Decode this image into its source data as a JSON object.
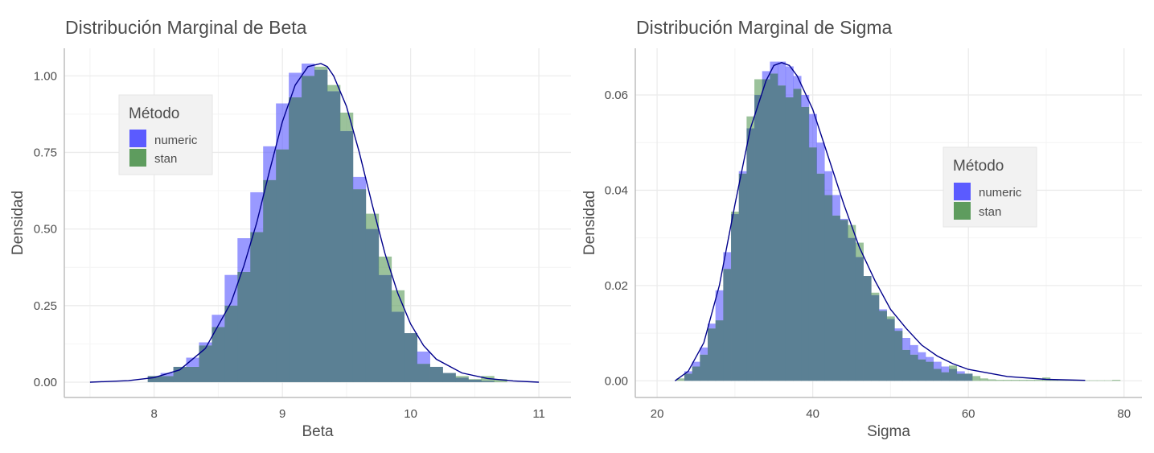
{
  "colors": {
    "numeric": "#5b5bff",
    "stan": "#5e9c5e",
    "overlap": "#5b8094",
    "curve": "#00008b",
    "title": "#4d4d4d",
    "axis_text": "#4d4d4d",
    "grid": "#ebebeb",
    "axis_line": "#bdbdbd",
    "legend_bg": "#f2f2f2"
  },
  "chart_data": [
    {
      "type": "histogram-density",
      "title": "Distribución Marginal de Beta",
      "xlabel": "Beta",
      "ylabel": "Densidad",
      "xlim": [
        7.3,
        11.25
      ],
      "ylim": [
        -0.05,
        1.09
      ],
      "xticks": [
        {
          "value": 8,
          "label": "8"
        },
        {
          "value": 9,
          "label": "9"
        },
        {
          "value": 10,
          "label": "10"
        },
        {
          "value": 11,
          "label": "11"
        }
      ],
      "yticks": [
        {
          "value": 0,
          "label": "0.00"
        },
        {
          "value": 0.25,
          "label": "0.25"
        },
        {
          "value": 0.5,
          "label": "0.50"
        },
        {
          "value": 0.75,
          "label": "0.75"
        },
        {
          "value": 1,
          "label": "1.00"
        }
      ],
      "grid": true,
      "legend": {
        "title": "Método",
        "position": "top-left",
        "items": [
          "numeric",
          "stan"
        ]
      },
      "curve": {
        "x": [
          7.5,
          7.8,
          8.0,
          8.2,
          8.4,
          8.6,
          8.7,
          8.8,
          8.9,
          9.0,
          9.1,
          9.2,
          9.3,
          9.35,
          9.4,
          9.5,
          9.6,
          9.7,
          9.8,
          9.9,
          10.0,
          10.1,
          10.2,
          10.4,
          10.6,
          10.8,
          11.0
        ],
        "y": [
          0.0,
          0.005,
          0.015,
          0.04,
          0.11,
          0.26,
          0.38,
          0.52,
          0.69,
          0.85,
          0.97,
          1.03,
          1.04,
          1.03,
          1.0,
          0.9,
          0.75,
          0.58,
          0.42,
          0.29,
          0.19,
          0.12,
          0.075,
          0.03,
          0.012,
          0.004,
          0.0
        ]
      },
      "series": [
        {
          "name": "numeric",
          "bin_width": 0.1,
          "x": [
            8.0,
            8.1,
            8.2,
            8.3,
            8.4,
            8.5,
            8.6,
            8.7,
            8.8,
            8.9,
            9.0,
            9.1,
            9.2,
            9.3,
            9.4,
            9.5,
            9.6,
            9.7,
            9.8,
            9.9,
            10.0,
            10.1,
            10.2,
            10.3,
            10.4,
            10.5,
            10.6
          ],
          "values": [
            0.02,
            0.03,
            0.05,
            0.08,
            0.13,
            0.22,
            0.35,
            0.47,
            0.62,
            0.77,
            0.91,
            1.01,
            1.04,
            1.02,
            0.95,
            0.82,
            0.67,
            0.5,
            0.35,
            0.23,
            0.16,
            0.1,
            0.05,
            0.03,
            0.015,
            0.008,
            0.004
          ]
        },
        {
          "name": "stan",
          "bin_width": 0.1,
          "x": [
            8.0,
            8.1,
            8.2,
            8.3,
            8.4,
            8.5,
            8.6,
            8.7,
            8.8,
            8.9,
            9.0,
            9.1,
            9.2,
            9.3,
            9.4,
            9.5,
            9.6,
            9.7,
            9.8,
            9.9,
            10.0,
            10.1,
            10.2,
            10.3,
            10.4,
            10.5,
            10.6,
            10.7,
            10.8
          ],
          "values": [
            0.02,
            0.02,
            0.05,
            0.05,
            0.12,
            0.18,
            0.25,
            0.36,
            0.49,
            0.66,
            0.76,
            0.93,
            1.0,
            1.03,
            0.97,
            0.88,
            0.63,
            0.55,
            0.41,
            0.3,
            0.16,
            0.06,
            0.05,
            0.03,
            0.02,
            0.01,
            0.02,
            0.01,
            0.0
          ]
        }
      ]
    },
    {
      "type": "histogram-density",
      "title": "Distribución Marginal de Sigma",
      "xlabel": "Sigma",
      "ylabel": "Densidad",
      "xlim": [
        17.2,
        82.3
      ],
      "ylim": [
        -0.0035,
        0.0698
      ],
      "xticks": [
        {
          "value": 20,
          "label": "20"
        },
        {
          "value": 40,
          "label": "40"
        },
        {
          "value": 60,
          "label": "60"
        },
        {
          "value": 80,
          "label": "80"
        }
      ],
      "yticks": [
        {
          "value": 0,
          "label": "0.00"
        },
        {
          "value": 0.02,
          "label": "0.02"
        },
        {
          "value": 0.04,
          "label": "0.04"
        },
        {
          "value": 0.06,
          "label": "0.06"
        }
      ],
      "grid": true,
      "legend": {
        "title": "Método",
        "position": "center-right",
        "items": [
          "numeric",
          "stan"
        ]
      },
      "curve": {
        "x": [
          22.3,
          24,
          26,
          28,
          30,
          32,
          34,
          35,
          36,
          37,
          38,
          40,
          42,
          44,
          46,
          48,
          50,
          52,
          54,
          56,
          58,
          60,
          65,
          70,
          75
        ],
        "y": [
          0.0,
          0.002,
          0.008,
          0.02,
          0.037,
          0.053,
          0.063,
          0.0662,
          0.0668,
          0.0662,
          0.064,
          0.057,
          0.047,
          0.037,
          0.028,
          0.021,
          0.015,
          0.011,
          0.0075,
          0.0052,
          0.0036,
          0.0024,
          0.0009,
          0.0003,
          0.0001
        ]
      },
      "series": [
        {
          "name": "numeric",
          "bin_width": 1.0,
          "x": [
            24,
            25,
            26,
            27,
            28,
            29,
            30,
            31,
            32,
            33,
            34,
            35,
            36,
            37,
            38,
            39,
            40,
            41,
            42,
            43,
            44,
            45,
            46,
            47,
            48,
            49,
            50,
            51,
            52,
            53,
            54,
            55,
            56,
            57,
            58,
            59,
            60
          ],
          "values": [
            0.002,
            0.004,
            0.007,
            0.012,
            0.019,
            0.027,
            0.035,
            0.044,
            0.053,
            0.06,
            0.065,
            0.067,
            0.067,
            0.066,
            0.064,
            0.06,
            0.056,
            0.05,
            0.044,
            0.039,
            0.034,
            0.03,
            0.026,
            0.022,
            0.018,
            0.015,
            0.013,
            0.011,
            0.009,
            0.0075,
            0.006,
            0.005,
            0.004,
            0.003,
            0.0025,
            0.002,
            0.0015
          ]
        },
        {
          "name": "stan",
          "bin_width": 1.0,
          "x": [
            23,
            24,
            25,
            26,
            27,
            28,
            29,
            30,
            31,
            32,
            33,
            34,
            35,
            36,
            37,
            38,
            39,
            40,
            41,
            42,
            43,
            44,
            45,
            46,
            47,
            48,
            49,
            50,
            51,
            52,
            53,
            54,
            55,
            56,
            57,
            58,
            59,
            60,
            61,
            62,
            63,
            64,
            65,
            66,
            67,
            68,
            69,
            70,
            71,
            72,
            73,
            74,
            75,
            76,
            77,
            78,
            79
          ],
          "values": [
            0.0005,
            0.0015,
            0.003,
            0.0055,
            0.011,
            0.0127,
            0.0235,
            0.0355,
            0.0435,
            0.0555,
            0.0633,
            0.0633,
            0.0645,
            0.062,
            0.0595,
            0.0613,
            0.0575,
            0.049,
            0.0435,
            0.039,
            0.0347,
            0.0338,
            0.0327,
            0.029,
            0.022,
            0.0185,
            0.0147,
            0.0135,
            0.0105,
            0.0065,
            0.0055,
            0.0045,
            0.004,
            0.0025,
            0.0018,
            0.0032,
            0.0015,
            0.0015,
            0.001,
            0.0005,
            0.0003,
            0.0002,
            0.0002,
            0.0002,
            0.0002,
            0.0002,
            0.0002,
            0.0007,
            0.0002,
            0.0001,
            0.0001,
            0.0001,
            0.0001,
            0.0001,
            0.0001,
            0.0001,
            0.0002
          ]
        }
      ]
    }
  ]
}
